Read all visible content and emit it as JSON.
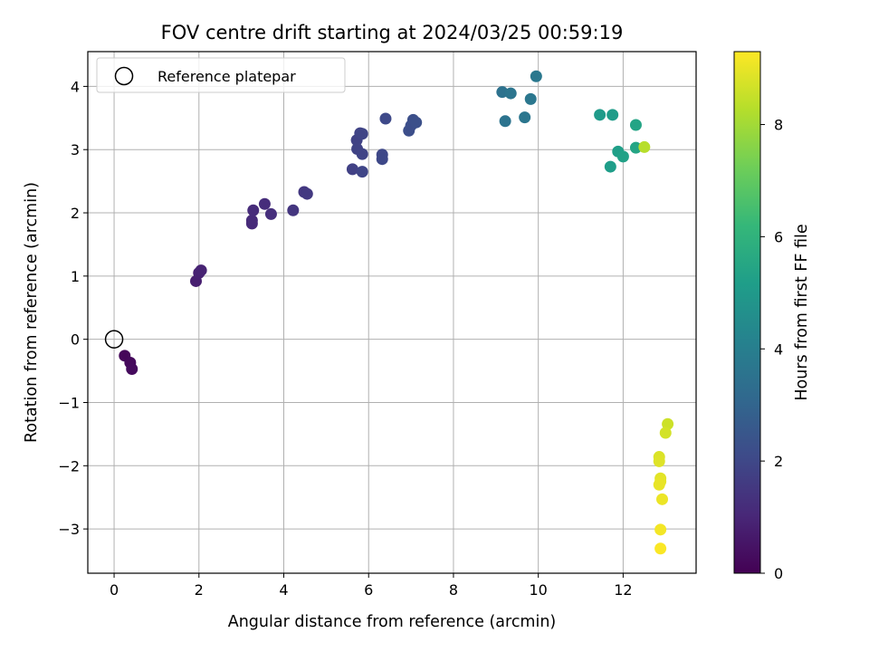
{
  "chart_data": {
    "type": "scatter",
    "title": "FOV centre drift starting at 2024/03/25 00:59:19",
    "xlabel": "Angular distance from reference (arcmin)",
    "ylabel": "Rotation from reference (arcmin)",
    "xlim": [
      -0.62,
      13.72
    ],
    "ylim": [
      -3.7,
      4.55
    ],
    "xticks": [
      0,
      2,
      4,
      6,
      8,
      10,
      12
    ],
    "yticks": [
      -3,
      -2,
      -1,
      0,
      1,
      2,
      3,
      4
    ],
    "grid": true,
    "legend": {
      "placement": "top-left",
      "entries": [
        "Reference platepar"
      ]
    },
    "reference_point": {
      "x": 0,
      "y": 0,
      "label": "Reference platepar"
    },
    "colorbar": {
      "label": "Hours from first FF file",
      "colormap": "viridis",
      "range": [
        0,
        9.3
      ],
      "ticks": [
        0,
        2,
        4,
        6,
        8
      ]
    },
    "points": [
      {
        "x": 0.25,
        "y": -0.26,
        "c": 0.15
      },
      {
        "x": 0.38,
        "y": -0.37,
        "c": 0.2
      },
      {
        "x": 0.42,
        "y": -0.47,
        "c": 0.25
      },
      {
        "x": 1.93,
        "y": 0.92,
        "c": 0.8
      },
      {
        "x": 2.0,
        "y": 1.05,
        "c": 0.85
      },
      {
        "x": 2.05,
        "y": 1.09,
        "c": 0.9
      },
      {
        "x": 3.25,
        "y": 1.83,
        "c": 1.1
      },
      {
        "x": 3.25,
        "y": 1.88,
        "c": 1.12
      },
      {
        "x": 3.28,
        "y": 2.04,
        "c": 1.15
      },
      {
        "x": 3.55,
        "y": 2.14,
        "c": 1.2
      },
      {
        "x": 3.7,
        "y": 1.98,
        "c": 1.25
      },
      {
        "x": 4.22,
        "y": 2.04,
        "c": 1.45
      },
      {
        "x": 4.48,
        "y": 2.33,
        "c": 1.5
      },
      {
        "x": 4.55,
        "y": 2.3,
        "c": 1.55
      },
      {
        "x": 5.62,
        "y": 2.69,
        "c": 1.8
      },
      {
        "x": 5.72,
        "y": 3.15,
        "c": 1.82
      },
      {
        "x": 5.73,
        "y": 3.01,
        "c": 1.84
      },
      {
        "x": 5.8,
        "y": 3.26,
        "c": 1.86
      },
      {
        "x": 5.85,
        "y": 2.93,
        "c": 1.88
      },
      {
        "x": 5.85,
        "y": 3.25,
        "c": 1.9
      },
      {
        "x": 5.85,
        "y": 2.65,
        "c": 1.92
      },
      {
        "x": 6.32,
        "y": 2.92,
        "c": 2.0
      },
      {
        "x": 6.32,
        "y": 2.85,
        "c": 2.02
      },
      {
        "x": 6.4,
        "y": 3.49,
        "c": 2.05
      },
      {
        "x": 6.95,
        "y": 3.3,
        "c": 2.2
      },
      {
        "x": 7.0,
        "y": 3.38,
        "c": 2.22
      },
      {
        "x": 7.05,
        "y": 3.47,
        "c": 2.24
      },
      {
        "x": 7.12,
        "y": 3.43,
        "c": 2.26
      },
      {
        "x": 9.15,
        "y": 3.91,
        "c": 3.5
      },
      {
        "x": 9.22,
        "y": 3.45,
        "c": 3.55
      },
      {
        "x": 9.35,
        "y": 3.89,
        "c": 3.6
      },
      {
        "x": 9.68,
        "y": 3.51,
        "c": 3.65
      },
      {
        "x": 9.82,
        "y": 3.8,
        "c": 3.7
      },
      {
        "x": 9.95,
        "y": 4.16,
        "c": 3.75
      },
      {
        "x": 11.45,
        "y": 3.55,
        "c": 5.05
      },
      {
        "x": 11.75,
        "y": 3.55,
        "c": 5.1
      },
      {
        "x": 11.7,
        "y": 2.73,
        "c": 5.15
      },
      {
        "x": 11.88,
        "y": 2.97,
        "c": 5.2
      },
      {
        "x": 12.0,
        "y": 2.89,
        "c": 5.3
      },
      {
        "x": 12.3,
        "y": 3.39,
        "c": 5.4
      },
      {
        "x": 12.3,
        "y": 3.03,
        "c": 5.45
      },
      {
        "x": 12.5,
        "y": 3.04,
        "c": 8.3
      },
      {
        "x": 13.05,
        "y": -1.34,
        "c": 8.6
      },
      {
        "x": 13.0,
        "y": -1.48,
        "c": 8.7
      },
      {
        "x": 12.85,
        "y": -1.86,
        "c": 8.8
      },
      {
        "x": 12.85,
        "y": -1.93,
        "c": 8.85
      },
      {
        "x": 12.88,
        "y": -2.2,
        "c": 8.9
      },
      {
        "x": 12.88,
        "y": -2.25,
        "c": 8.95
      },
      {
        "x": 12.85,
        "y": -2.3,
        "c": 9.0
      },
      {
        "x": 12.92,
        "y": -2.53,
        "c": 9.05
      },
      {
        "x": 12.88,
        "y": -3.01,
        "c": 9.15
      },
      {
        "x": 12.88,
        "y": -3.31,
        "c": 9.25
      }
    ]
  }
}
